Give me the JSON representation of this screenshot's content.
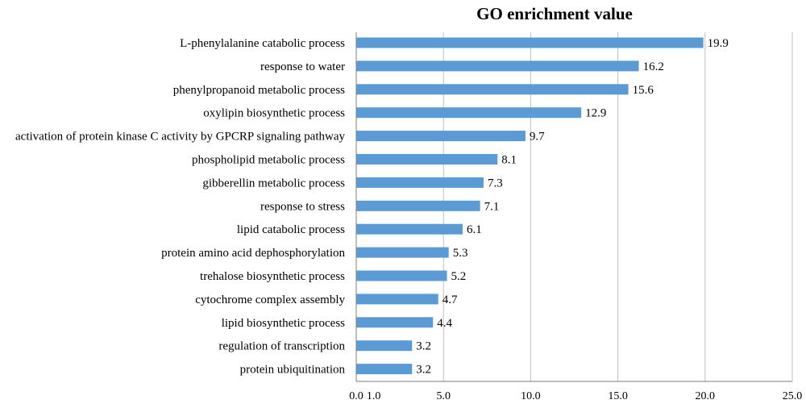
{
  "chart_data": {
    "type": "bar",
    "orientation": "horizontal",
    "title": "GO enrichment value",
    "xlabel": "",
    "ylabel": "",
    "xlim": [
      0,
      25
    ],
    "x_ticks": [
      "0.0",
      "1.0",
      "5.0",
      "10.0",
      "15.0",
      "20.0",
      "25.0"
    ],
    "x_tick_values": [
      0,
      1,
      5,
      10,
      15,
      20,
      25
    ],
    "categories": [
      "L-phenylalanine catabolic process",
      "response to water",
      "phenylpropanoid metabolic process",
      "oxylipin biosynthetic process",
      "activation of protein kinase C activity by GPCRP signaling pathway",
      "phospholipid metabolic process",
      "gibberellin metabolic process",
      "response to stress",
      "lipid catabolic process",
      "protein amino acid dephosphorylation",
      "trehalose biosynthetic process",
      "cytochrome complex assembly",
      "lipid biosynthetic process",
      "regulation of transcription",
      "protein ubiquitination"
    ],
    "values": [
      19.9,
      16.2,
      15.6,
      12.9,
      9.7,
      8.1,
      7.3,
      7.1,
      6.1,
      5.3,
      5.2,
      4.7,
      4.4,
      3.2,
      3.2
    ],
    "value_labels": [
      "19.9",
      "16.2",
      "15.6",
      "12.9",
      "9.7",
      "8.1",
      "7.3",
      "7.1",
      "6.1",
      "5.3",
      "5.2",
      "4.7",
      "4.4",
      "3.2",
      "3.2"
    ],
    "bar_color": "#5B9BD5",
    "grid_color": "#BFBFBF",
    "axis_color": "#7F7F7F",
    "grid": true,
    "legend": "none"
  }
}
